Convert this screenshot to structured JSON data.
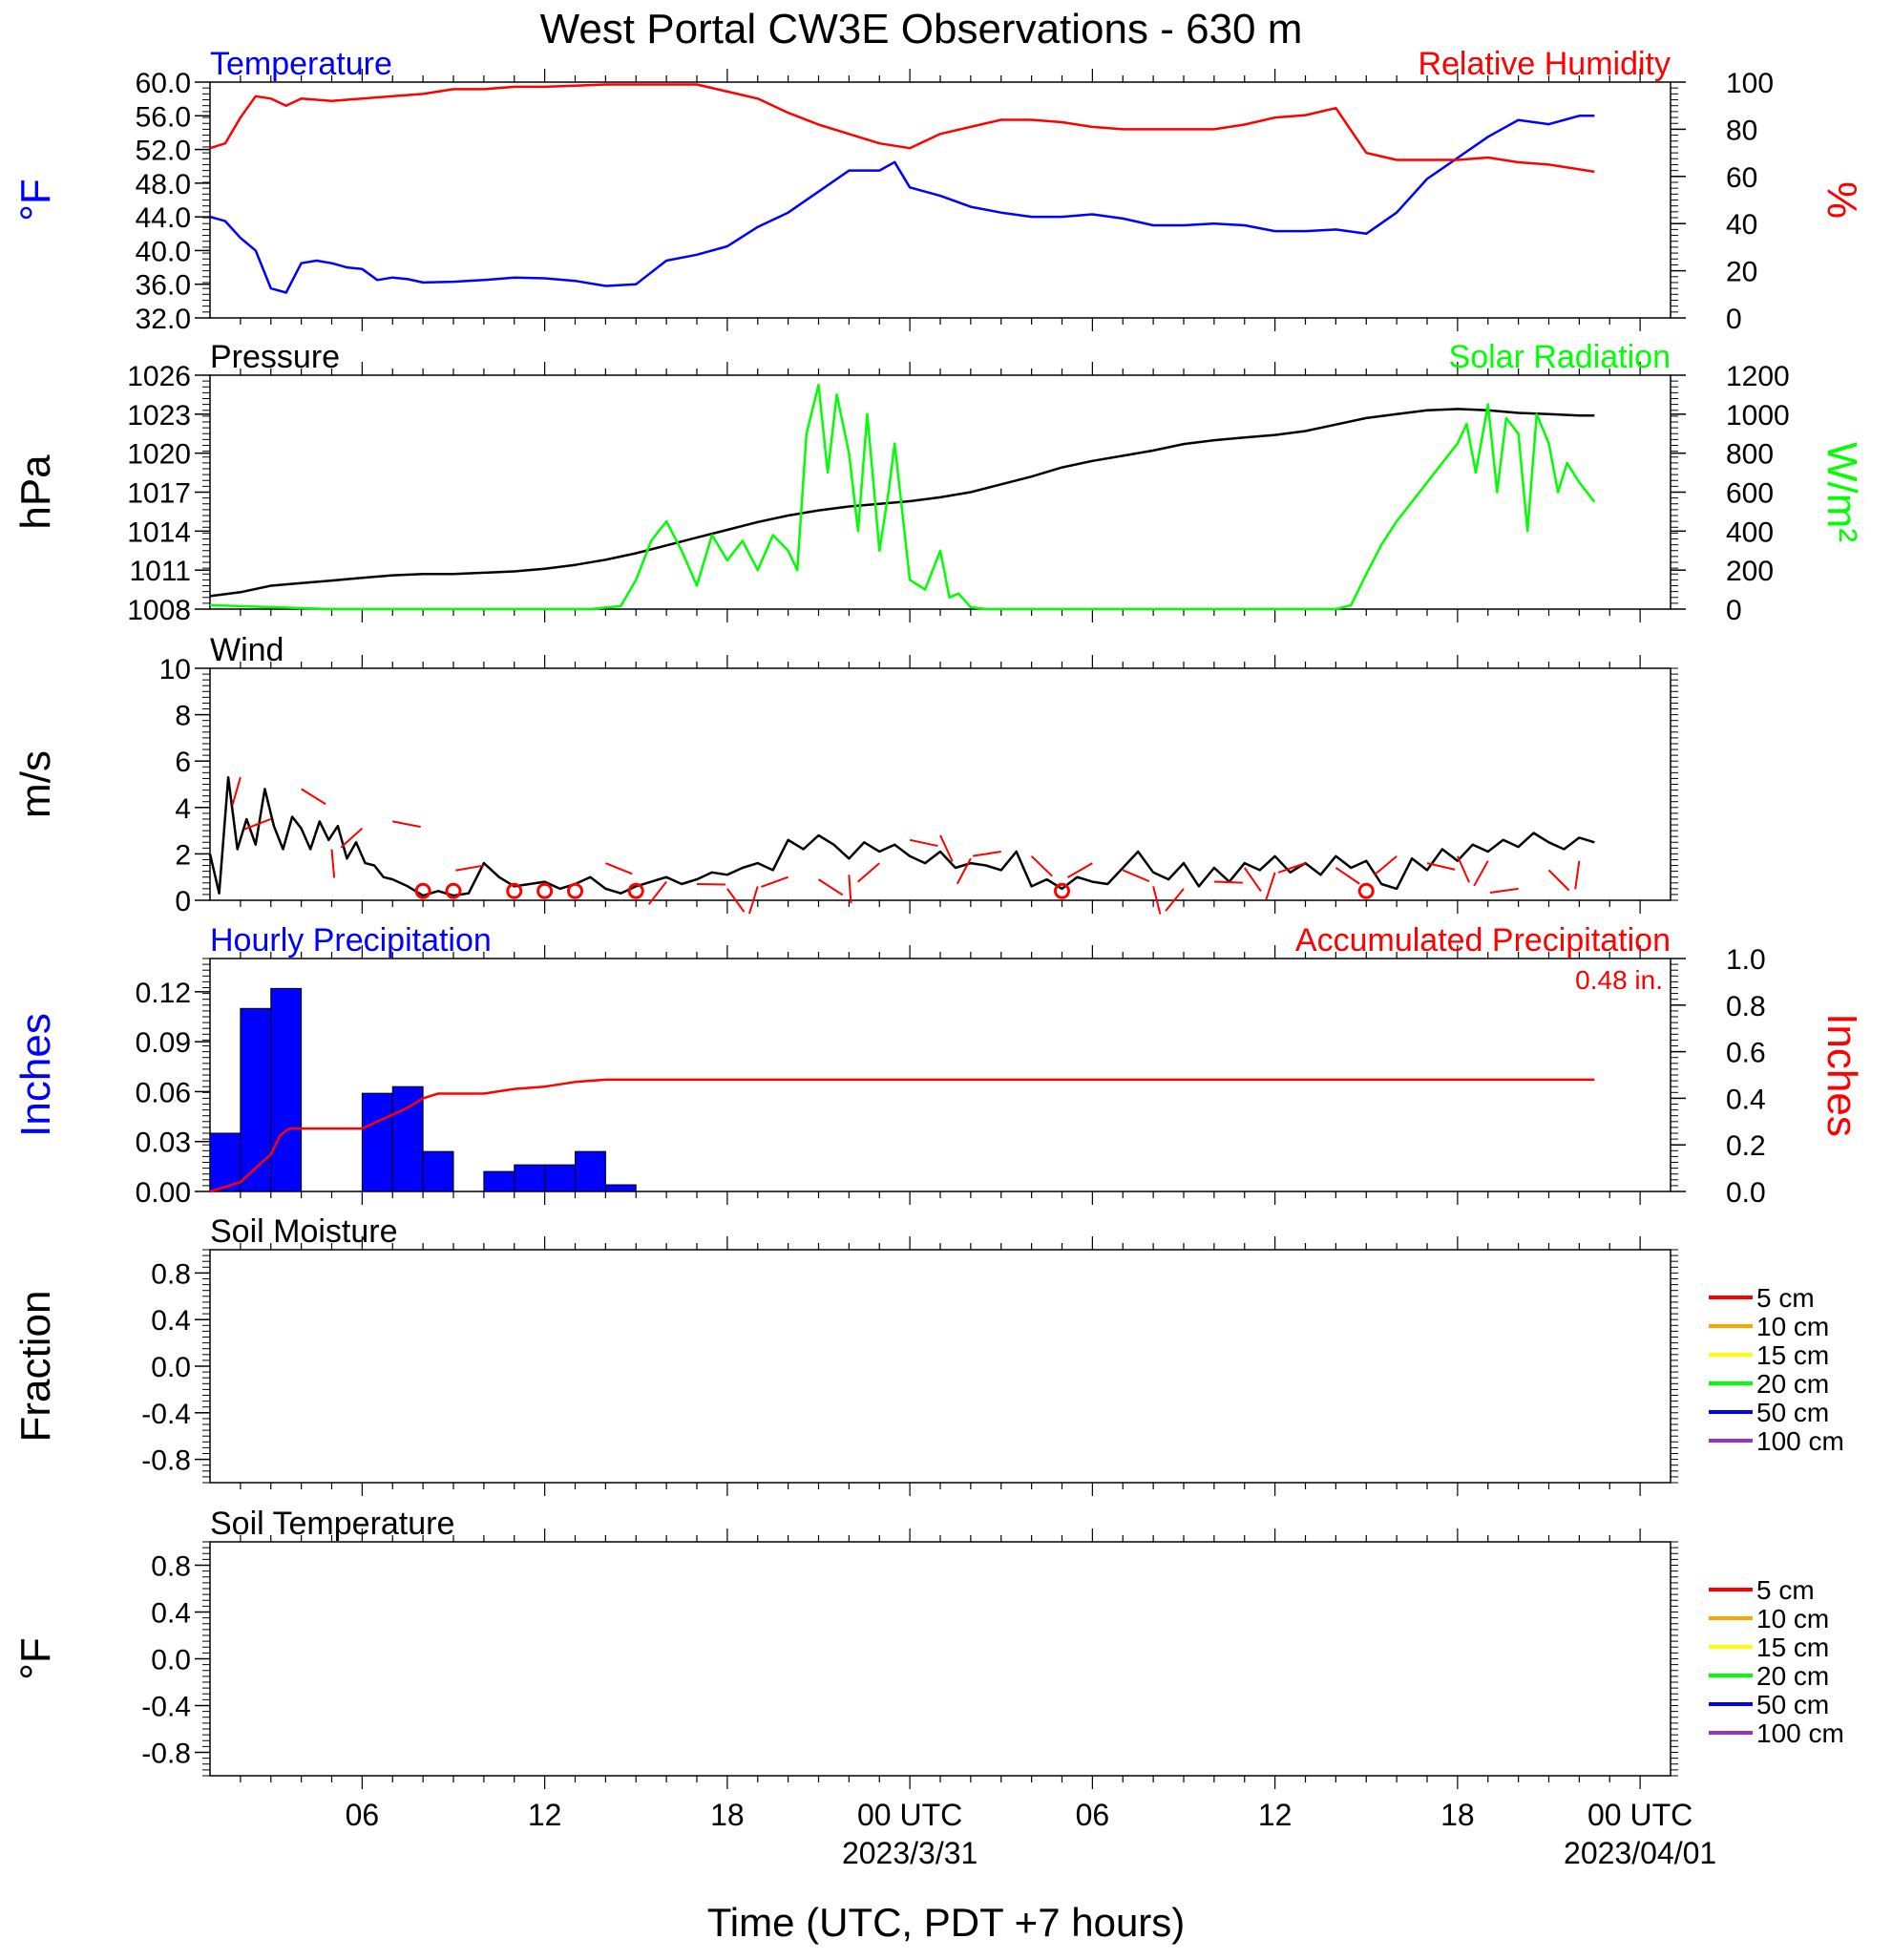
{
  "page": {
    "title": "West Portal CW3E Observations - 630 m",
    "x_axis_title": "Time (UTC, PDT +7 hours)",
    "x_ticks": [
      {
        "hour": 6,
        "label": "06",
        "date": ""
      },
      {
        "hour": 12,
        "label": "12",
        "date": ""
      },
      {
        "hour": 18,
        "label": "18",
        "date": ""
      },
      {
        "hour": 24,
        "label": "00 UTC",
        "date": "2023/3/31"
      },
      {
        "hour": 30,
        "label": "06",
        "date": ""
      },
      {
        "hour": 36,
        "label": "12",
        "date": ""
      },
      {
        "hour": 42,
        "label": "18",
        "date": ""
      },
      {
        "hour": 48,
        "label": "00 UTC",
        "date": "2023/04/01"
      }
    ],
    "x_range_hours": [
      1,
      49
    ],
    "colors": {
      "blue": "#0000ff",
      "red": "#ff0000",
      "green": "#00ff00",
      "black": "#000000"
    }
  },
  "chart_data": [
    {
      "id": "temp_rh",
      "type": "line",
      "title_left": "Temperature",
      "title_right": "Relative Humidity",
      "ylabel_left": "°F",
      "ylabel_right": "%",
      "y_left_ticks": [
        "60.0",
        "56.0",
        "52.0",
        "48.0",
        "44.0",
        "40.0",
        "36.0",
        "32.0"
      ],
      "y_left_range": [
        32,
        60
      ],
      "y_right_ticks": [
        "100",
        "80",
        "60",
        "40",
        "20",
        "0"
      ],
      "y_right_range": [
        0,
        100
      ],
      "series": [
        {
          "name": "Temperature",
          "axis": "left",
          "color": "#0000ff",
          "x": [
            1,
            1.5,
            2,
            2.5,
            3,
            3.5,
            4,
            4.5,
            5,
            5.5,
            6,
            6.5,
            7,
            7.5,
            8,
            9,
            10,
            11,
            12,
            13,
            14,
            15,
            16,
            17,
            18,
            19,
            20,
            21,
            22,
            23,
            23.5,
            24,
            25,
            26,
            27,
            28,
            29,
            30,
            31,
            32,
            33,
            34,
            35,
            36,
            37,
            38,
            39,
            40,
            41,
            42,
            43,
            44,
            45,
            46,
            46.5
          ],
          "y": [
            44,
            43.5,
            41.5,
            40,
            35.5,
            35,
            38.5,
            38.8,
            38.5,
            38,
            37.8,
            36.5,
            36.8,
            36.6,
            36.2,
            36.3,
            36.5,
            36.8,
            36.7,
            36.4,
            35.8,
            36,
            38.8,
            39.5,
            40.5,
            42.8,
            44.5,
            47,
            49.5,
            49.5,
            50.5,
            47.5,
            46.5,
            45.2,
            44.5,
            44,
            44,
            44.3,
            43.8,
            43,
            43,
            43.2,
            43,
            42.3,
            42.3,
            42.5,
            42,
            44.5,
            48.5,
            51,
            53.5,
            55.5,
            55,
            56,
            56
          ]
        },
        {
          "name": "Relative Humidity",
          "axis": "right",
          "color": "#ff0000",
          "x": [
            1,
            1.5,
            2,
            2.5,
            3,
            3.5,
            4,
            5,
            6,
            7,
            8,
            9,
            10,
            11,
            12,
            13,
            14,
            15,
            16,
            17,
            18,
            19,
            20,
            21,
            22,
            23,
            24,
            25,
            26,
            27,
            28,
            29,
            30,
            31,
            32,
            33,
            34,
            35,
            36,
            37,
            38,
            39,
            40,
            41,
            42,
            43,
            44,
            45,
            46,
            46.5
          ],
          "y": [
            72,
            74,
            85,
            94,
            93,
            90,
            93,
            92,
            93,
            94,
            95,
            97,
            97,
            98,
            98,
            98.5,
            99,
            99,
            99,
            99,
            96,
            93,
            87,
            82,
            78,
            74,
            72,
            78,
            81,
            84,
            84,
            83,
            81,
            80,
            80,
            80,
            80,
            82,
            85,
            86,
            89,
            70,
            67,
            67,
            67,
            68,
            66,
            65,
            63,
            62
          ]
        }
      ]
    },
    {
      "id": "pressure_solar",
      "type": "line",
      "title_left": "Pressure",
      "title_right": "Solar Radiation",
      "ylabel_left": "hPa",
      "ylabel_right": "W/m²",
      "y_left_ticks": [
        "1026",
        "1023",
        "1020",
        "1017",
        "1014",
        "1011",
        "1008"
      ],
      "y_left_range": [
        1008,
        1026
      ],
      "y_right_ticks": [
        "1200",
        "1000",
        "800",
        "600",
        "400",
        "200",
        "0"
      ],
      "y_right_range": [
        0,
        1200
      ],
      "series": [
        {
          "name": "Pressure",
          "axis": "left",
          "color": "#000000",
          "x": [
            1,
            2,
            3,
            4,
            5,
            6,
            7,
            8,
            9,
            10,
            11,
            12,
            13,
            14,
            15,
            16,
            17,
            18,
            19,
            20,
            21,
            22,
            23,
            24,
            25,
            26,
            27,
            28,
            29,
            30,
            31,
            32,
            33,
            34,
            35,
            36,
            37,
            38,
            39,
            40,
            41,
            42,
            43,
            44,
            45,
            46,
            46.5
          ],
          "y": [
            1009,
            1009.3,
            1009.8,
            1010,
            1010.2,
            1010.4,
            1010.6,
            1010.7,
            1010.7,
            1010.8,
            1010.9,
            1011.1,
            1011.4,
            1011.8,
            1012.3,
            1012.9,
            1013.5,
            1014.1,
            1014.7,
            1015.2,
            1015.6,
            1015.9,
            1016.1,
            1016.3,
            1016.6,
            1017,
            1017.6,
            1018.2,
            1018.9,
            1019.4,
            1019.8,
            1020.2,
            1020.7,
            1021,
            1021.2,
            1021.4,
            1021.7,
            1022.2,
            1022.7,
            1023,
            1023.3,
            1023.4,
            1023.3,
            1023.1,
            1023,
            1022.9,
            1022.9
          ]
        },
        {
          "name": "Solar Radiation",
          "axis": "right",
          "color": "#00ff00",
          "x": [
            1,
            5,
            10,
            13.5,
            14.5,
            15,
            15.5,
            16,
            16.5,
            17,
            17.5,
            18,
            18.5,
            19,
            19.5,
            20,
            20.3,
            20.6,
            21,
            21.3,
            21.6,
            22,
            22.3,
            22.6,
            23,
            23.3,
            23.5,
            24,
            24.5,
            25,
            25.3,
            25.6,
            26,
            26.5,
            27,
            30,
            33,
            35,
            36,
            37,
            38,
            38.5,
            39,
            39.5,
            40,
            40.5,
            41,
            41.5,
            42,
            42.3,
            42.6,
            43,
            43.3,
            43.6,
            44,
            44.3,
            44.6,
            45,
            45.3,
            45.6,
            46,
            46.5
          ],
          "y": [
            20,
            0,
            0,
            0,
            15,
            150,
            350,
            450,
            300,
            120,
            380,
            250,
            350,
            200,
            380,
            300,
            200,
            900,
            1150,
            700,
            1100,
            800,
            400,
            1000,
            300,
            600,
            850,
            150,
            100,
            300,
            60,
            80,
            10,
            0,
            0,
            0,
            0,
            0,
            0,
            0,
            0,
            20,
            180,
            330,
            450,
            550,
            650,
            750,
            850,
            950,
            700,
            1050,
            600,
            980,
            900,
            400,
            1000,
            850,
            600,
            750,
            650,
            550
          ]
        }
      ]
    },
    {
      "id": "wind",
      "type": "line",
      "title_left": "Wind",
      "ylabel_left": "m/s",
      "y_left_ticks": [
        "10",
        "8",
        "6",
        "4",
        "2",
        "0"
      ],
      "y_left_range": [
        0,
        10
      ],
      "series": [
        {
          "name": "Wind",
          "axis": "left",
          "color": "#000000",
          "x": [
            1,
            1.3,
            1.6,
            1.9,
            2.2,
            2.5,
            2.8,
            3.1,
            3.4,
            3.7,
            4,
            4.3,
            4.6,
            4.9,
            5.2,
            5.5,
            5.8,
            6.1,
            6.4,
            6.7,
            7,
            7.5,
            8,
            8.5,
            9,
            9.5,
            10,
            10.5,
            11,
            11.5,
            12,
            12.5,
            13,
            13.5,
            14,
            14.5,
            15,
            15.5,
            16,
            16.5,
            17,
            17.5,
            18,
            18.5,
            19,
            19.5,
            20,
            20.5,
            21,
            21.5,
            22,
            22.5,
            23,
            23.5,
            24,
            24.5,
            25,
            25.5,
            26,
            26.5,
            27,
            27.5,
            28,
            28.5,
            29,
            29.5,
            30,
            30.5,
            31,
            31.5,
            32,
            32.5,
            33,
            33.5,
            34,
            34.5,
            35,
            35.5,
            36,
            36.5,
            37,
            37.5,
            38,
            38.5,
            39,
            39.5,
            40,
            40.5,
            41,
            41.5,
            42,
            42.5,
            43,
            43.5,
            44,
            44.5,
            45,
            45.5,
            46,
            46.5
          ],
          "y": [
            2,
            0.3,
            5.3,
            2.2,
            3.5,
            2.4,
            4.8,
            3.2,
            2.2,
            3.6,
            3.1,
            2.2,
            3.4,
            2.6,
            3.2,
            1.8,
            2.5,
            1.6,
            1.5,
            1,
            0.9,
            0.6,
            0.2,
            0.4,
            0.2,
            0.3,
            1.6,
            1,
            0.6,
            0.7,
            0.8,
            0.5,
            0.7,
            1,
            0.5,
            0.3,
            0.6,
            0.8,
            1,
            0.7,
            0.9,
            1.2,
            1.1,
            1.4,
            1.6,
            1.3,
            2.6,
            2.2,
            2.8,
            2.4,
            1.8,
            2.5,
            2.1,
            2.4,
            1.9,
            1.6,
            2.1,
            1.4,
            1.6,
            1.5,
            1.3,
            2.1,
            0.6,
            0.9,
            0.5,
            1,
            0.8,
            0.7,
            1.4,
            2.1,
            1.2,
            0.9,
            1.6,
            0.6,
            1.4,
            0.8,
            1.6,
            1.3,
            1.9,
            1.2,
            1.6,
            1.1,
            1.9,
            1.4,
            1.7,
            0.7,
            0.5,
            1.8,
            1.3,
            2.2,
            1.7,
            2.4,
            2.1,
            2.6,
            2.3,
            2.9,
            2.5,
            2.2,
            2.7,
            2.5
          ]
        }
      ],
      "barbs_calm_hours": [
        8,
        9,
        11,
        12,
        13,
        15,
        29,
        39
      ]
    },
    {
      "id": "precip",
      "type": "bar",
      "title_left": "Hourly Precipitation",
      "title_right": "Accumulated Precipitation",
      "annotation": "0.48 in.",
      "ylabel_left": "Inches",
      "ylabel_right": "Inches",
      "y_left_ticks": [
        "0.12",
        "0.09",
        "0.06",
        "0.03",
        "0.00"
      ],
      "y_left_range": [
        0,
        0.14
      ],
      "y_right_ticks": [
        "1.0",
        "0.8",
        "0.6",
        "0.4",
        "0.2",
        "0.0"
      ],
      "y_right_range": [
        0,
        1.0
      ],
      "bars": {
        "name": "Hourly Precipitation",
        "color": "#0000ff",
        "hour_start": [
          1,
          2,
          3,
          6,
          7,
          8,
          10,
          11,
          12,
          13,
          14
        ],
        "values": [
          0.035,
          0.11,
          0.122,
          0.059,
          0.063,
          0.024,
          0.012,
          0.016,
          0.016,
          0.024,
          0.004
        ]
      },
      "series": [
        {
          "name": "Accumulated Precipitation",
          "axis": "right",
          "color": "#ff0000",
          "x": [
            1,
            2,
            2.5,
            3,
            3.3,
            3.6,
            4,
            5,
            6,
            6.5,
            7,
            7.5,
            8,
            8.5,
            9,
            10,
            11,
            12,
            13,
            14,
            14.5,
            15,
            46.5
          ],
          "y": [
            0,
            0.04,
            0.1,
            0.16,
            0.24,
            0.27,
            0.27,
            0.27,
            0.27,
            0.3,
            0.33,
            0.36,
            0.4,
            0.42,
            0.42,
            0.42,
            0.44,
            0.45,
            0.47,
            0.48,
            0.48,
            0.48,
            0.48
          ]
        }
      ]
    },
    {
      "id": "soil_moisture",
      "type": "line",
      "title_left": "Soil Moisture",
      "ylabel_left": "Fraction",
      "y_left_ticks": [
        "0.8",
        "0.4",
        "0.0",
        "-0.4",
        "-0.8"
      ],
      "y_left_range": [
        -1,
        1
      ],
      "legend": [
        {
          "label": "5 cm",
          "color": "#ff0000"
        },
        {
          "label": "10 cm",
          "color": "#ffa500"
        },
        {
          "label": "15 cm",
          "color": "#ffff00"
        },
        {
          "label": "20 cm",
          "color": "#00ff00"
        },
        {
          "label": "50 cm",
          "color": "#0000ff"
        },
        {
          "label": "100 cm",
          "color": "#9932cc"
        }
      ],
      "series": []
    },
    {
      "id": "soil_temperature",
      "type": "line",
      "title_left": "Soil Temperature",
      "ylabel_left": "°F",
      "y_left_ticks": [
        "0.8",
        "0.4",
        "0.0",
        "-0.4",
        "-0.8"
      ],
      "y_left_range": [
        -1,
        1
      ],
      "legend": [
        {
          "label": "5 cm",
          "color": "#ff0000"
        },
        {
          "label": "10 cm",
          "color": "#ffa500"
        },
        {
          "label": "15 cm",
          "color": "#ffff00"
        },
        {
          "label": "20 cm",
          "color": "#00ff00"
        },
        {
          "label": "50 cm",
          "color": "#0000ff"
        },
        {
          "label": "100 cm",
          "color": "#9932cc"
        }
      ],
      "series": []
    }
  ]
}
